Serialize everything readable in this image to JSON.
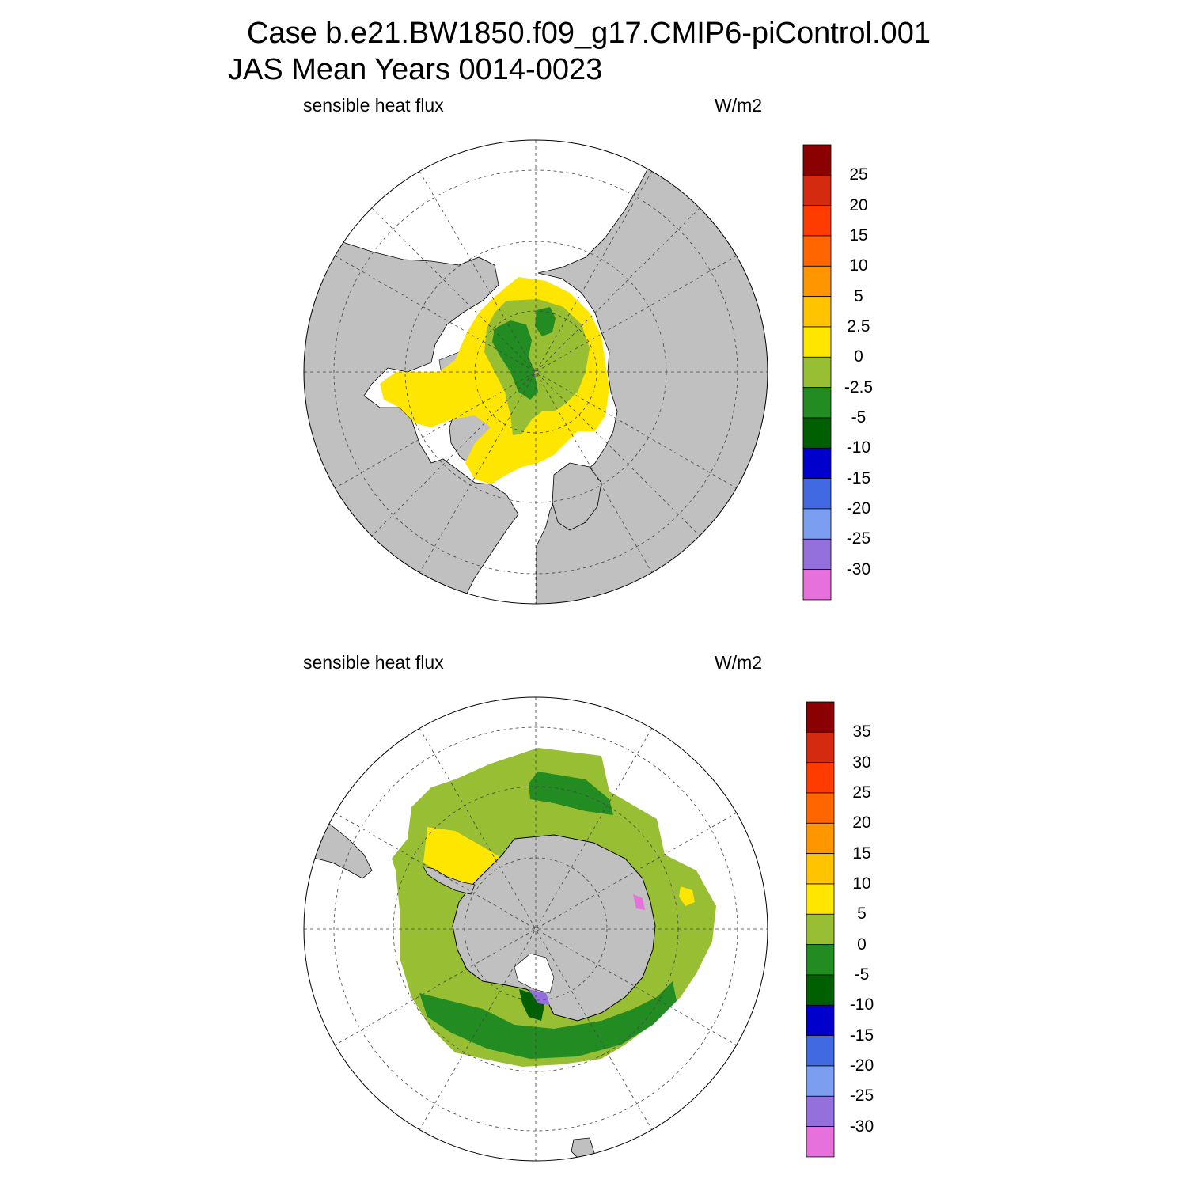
{
  "titles": {
    "case": "Case b.e21.BW1850.f09_g17.CMIP6-piControl.001",
    "period": "JAS Mean   Years 0014-0023"
  },
  "colors": {
    "land": "#c0c0c0",
    "ocean_missing": "#ffffff"
  },
  "panels": [
    {
      "name": "north",
      "hemisphere": "Northern Hemisphere",
      "variable": "sensible heat flux",
      "units": "W/m2",
      "colorbar": {
        "labels": [
          "25",
          "20",
          "15",
          "10",
          "5",
          "2.5",
          "0",
          "-2.5",
          "-5",
          "-10",
          "-15",
          "-20",
          "-25",
          "-30"
        ],
        "colors": [
          "#8b0000",
          "#d42a10",
          "#ff3c00",
          "#ff6600",
          "#ff9600",
          "#ffc300",
          "#ffe600",
          "#98bf33",
          "#228b22",
          "#005f00",
          "#0000cd",
          "#4169e1",
          "#7b9ef0",
          "#9370db",
          "#e670dc"
        ]
      }
    },
    {
      "name": "south",
      "hemisphere": "Southern Hemisphere",
      "variable": "sensible heat flux",
      "units": "W/m2",
      "colorbar": {
        "labels": [
          "35",
          "30",
          "25",
          "20",
          "15",
          "10",
          "5",
          "0",
          "-5",
          "-10",
          "-15",
          "-20",
          "-25",
          "-30"
        ],
        "colors": [
          "#8b0000",
          "#d42a10",
          "#ff3c00",
          "#ff6600",
          "#ff9600",
          "#ffc300",
          "#ffe600",
          "#98bf33",
          "#228b22",
          "#005f00",
          "#0000cd",
          "#4169e1",
          "#7b9ef0",
          "#9370db",
          "#e670dc"
        ]
      }
    }
  ]
}
